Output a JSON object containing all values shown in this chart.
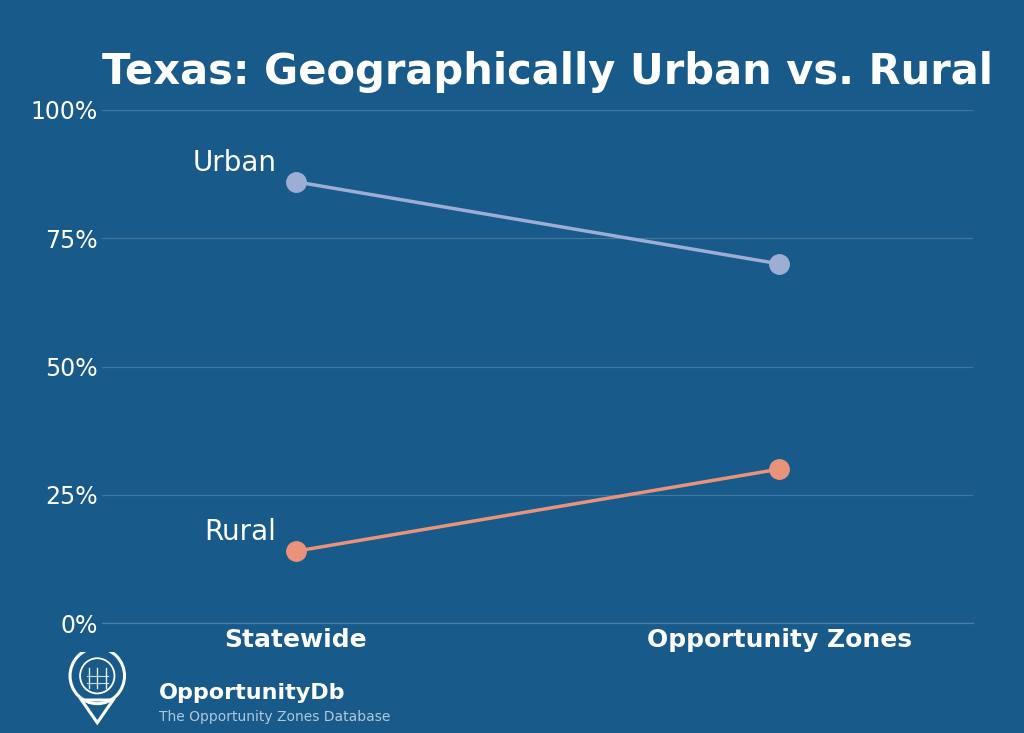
{
  "title": "Texas: Geographically Urban vs. Rural",
  "background_color": "#185a8a",
  "text_color": "#ffffff",
  "grid_color": "#4a7fa5",
  "categories": [
    "Statewide",
    "Opportunity Zones"
  ],
  "urban": [
    86,
    70
  ],
  "rural": [
    14,
    30
  ],
  "urban_color": "#9dadd4",
  "rural_color": "#e8937a",
  "ylim": [
    0,
    100
  ],
  "yticks": [
    0,
    25,
    50,
    75,
    100
  ],
  "ytick_labels": [
    "0%",
    "25%",
    "50%",
    "75%",
    "100%"
  ],
  "title_fontsize": 30,
  "series_label_fontsize": 20,
  "tick_fontsize": 17,
  "xtick_fontsize": 18,
  "marker_size": 14,
  "line_width": 2.5,
  "logo_text_main": "OpportunityDb",
  "logo_text_sub": "The Opportunity Zones Database"
}
